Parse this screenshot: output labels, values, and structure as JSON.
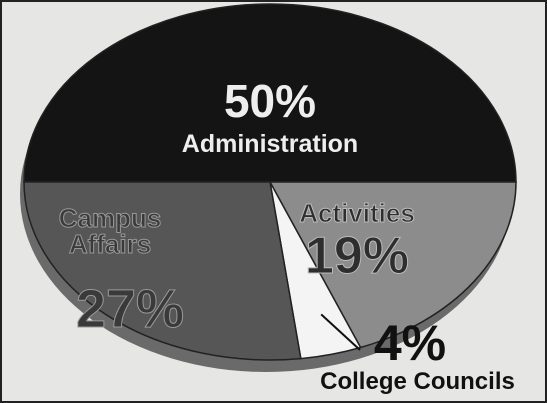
{
  "chart_data": {
    "type": "pie",
    "categories": [
      "Administration",
      "Activities",
      "College Councils",
      "Campus Affairs"
    ],
    "values": [
      50,
      19,
      4,
      27
    ],
    "value_labels": [
      "50%",
      "19%",
      "4%",
      "27%"
    ],
    "colors": [
      "#141414",
      "#8c8c8c",
      "#f4f4f4",
      "#565656"
    ]
  }
}
